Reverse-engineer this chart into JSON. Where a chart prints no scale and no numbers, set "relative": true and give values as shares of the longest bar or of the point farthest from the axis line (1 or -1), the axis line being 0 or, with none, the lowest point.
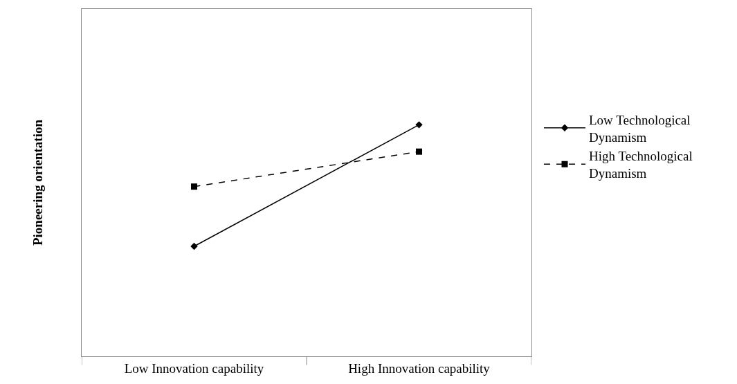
{
  "chart_data": {
    "type": "line",
    "relative": true,
    "ylabel": "Pioneering orientation",
    "categories": [
      "Low Innovation capability",
      "High Innovation capability"
    ],
    "legend": "right",
    "series": [
      {
        "name": "Low Technological Dynamism",
        "color": "#000000",
        "marker": "diamond",
        "line_style": "solid",
        "values": [
          0.475,
          1
        ]
      },
      {
        "name": "High Technological Dynamism",
        "color": "#000000",
        "marker": "square",
        "line_style": "dashed",
        "values": [
          0.733,
          0.884
        ]
      }
    ]
  }
}
